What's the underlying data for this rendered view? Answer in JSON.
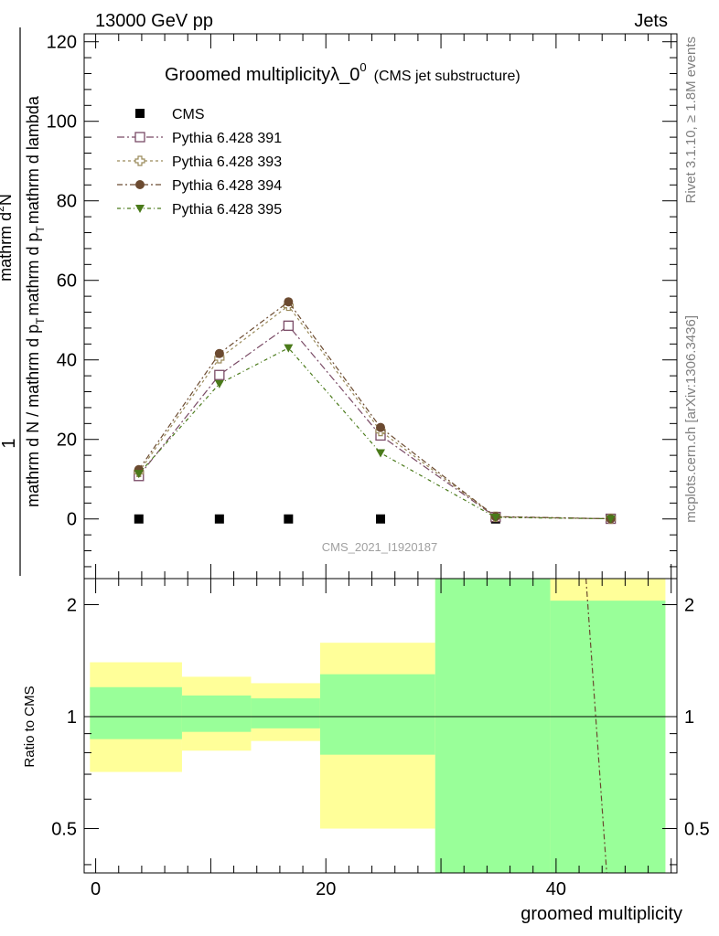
{
  "header": {
    "energy_label": "13000 GeV pp",
    "category_label": "Jets"
  },
  "side_labels": {
    "rivet": "Rivet 3.1.10, ≥ 1.8M events",
    "mcplots": "mcplots.cern.ch [arXiv:1306.3436]"
  },
  "chart_data": [
    {
      "type": "line",
      "panel": "main",
      "title": "Groomed multiplicityλ_0",
      "title_sup": "0",
      "subtitle": "(CMS jet substructure)",
      "watermark": "CMS_2021_I1920187",
      "ylabel_numerator": "1",
      "ylabel_denominator": "mathrm d N / mathrm d p",
      "ylabel_denominator_sub": "T",
      "ylabel_denominator_rest": "mathrm d p",
      "ylabel_top": "mathrm d",
      "ylabel_top_sup": "2",
      "ylabel_top_rest": "N",
      "ylabel_full_rest": "mathrm d lambda",
      "ylabel_num_text": "mathrm d",
      "ylim": [
        -15,
        122
      ],
      "xlim": [
        -1,
        50.5
      ],
      "yticks": [
        0,
        20,
        40,
        60,
        80,
        100,
        120
      ],
      "ytick_labels": [
        "0",
        "20",
        "40",
        "60",
        "80",
        "100",
        "120"
      ],
      "grid": false,
      "legend_position": "top-left",
      "series": [
        {
          "name": "CMS",
          "marker": "square-filled",
          "color": "#000000",
          "x": [
            3.75,
            10.75,
            16.75,
            24.75,
            34.75,
            44.75
          ],
          "y": [
            0,
            0,
            0,
            0,
            0,
            0
          ]
        },
        {
          "name": "Pythia 6.428 391",
          "marker": "square-open",
          "color": "#7a4b66",
          "x": [
            3.75,
            10.75,
            16.75,
            24.75,
            34.75,
            44.75
          ],
          "y": [
            10.8,
            36.2,
            48.6,
            21.0,
            0.5,
            0.05
          ]
        },
        {
          "name": "Pythia 6.428 393",
          "marker": "cross-open",
          "color": "#9a8a5a",
          "x": [
            3.75,
            10.75,
            16.75,
            24.75,
            34.75,
            44.75
          ],
          "y": [
            11.8,
            40.4,
            53.6,
            22.1,
            0.55,
            0.05
          ]
        },
        {
          "name": "Pythia 6.428 394",
          "marker": "circle-filled",
          "color": "#6b4a30",
          "x": [
            3.75,
            10.75,
            16.75,
            24.75,
            34.75,
            44.75
          ],
          "y": [
            12.4,
            41.6,
            54.6,
            23.0,
            0.6,
            0.05
          ]
        },
        {
          "name": "Pythia 6.428 395",
          "marker": "triangle-down-filled",
          "color": "#4a7a1a",
          "x": [
            3.75,
            10.75,
            16.75,
            24.75,
            34.75,
            44.75
          ],
          "y": [
            11.4,
            34.0,
            43.0,
            16.6,
            0.4,
            0.04
          ]
        }
      ]
    },
    {
      "type": "area",
      "panel": "ratio",
      "ylabel": "Ratio to CMS",
      "xlabel": "groomed multiplicity",
      "scale": "log",
      "ylim": [
        0.38,
        2.35
      ],
      "yticks": [
        0.5,
        1,
        2
      ],
      "ytick_labels": [
        "0.5",
        "1",
        "2"
      ],
      "xticks": [
        0,
        20,
        40
      ],
      "xtick_labels": [
        "0",
        "20",
        "40"
      ],
      "reference_line": 1,
      "bands": [
        {
          "x0": -0.5,
          "x1": 7.5,
          "green": [
            0.87,
            1.2
          ],
          "yellow": [
            0.71,
            1.4
          ]
        },
        {
          "x0": 7.5,
          "x1": 13.5,
          "green": [
            0.91,
            1.14
          ],
          "yellow": [
            0.81,
            1.28
          ]
        },
        {
          "x0": 13.5,
          "x1": 19.5,
          "green": [
            0.93,
            1.12
          ],
          "yellow": [
            0.86,
            1.23
          ]
        },
        {
          "x0": 19.5,
          "x1": 29.5,
          "green": [
            0.79,
            1.3
          ],
          "yellow": [
            0.5,
            1.58
          ]
        },
        {
          "x0": 29.5,
          "x1": 39.5,
          "green": [
            0.35,
            3.0
          ],
          "yellow": [
            0.35,
            3.0
          ]
        },
        {
          "x0": 39.5,
          "x1": 49.5,
          "green": [
            0.35,
            2.05
          ],
          "yellow": [
            0.35,
            3.0
          ]
        }
      ],
      "ratio_line": {
        "color": "#6b4a30",
        "x": [
          42.6,
          44.4
        ],
        "y": [
          2.4,
          0.37
        ]
      }
    }
  ]
}
